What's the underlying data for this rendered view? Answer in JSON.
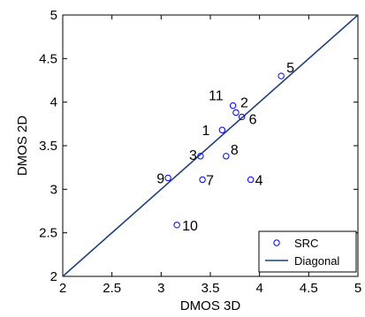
{
  "chart_data": {
    "type": "scatter",
    "title": "",
    "xlabel": "DMOS 3D",
    "ylabel": "DMOS 2D",
    "xlim": [
      2,
      5
    ],
    "ylim": [
      2,
      5
    ],
    "x_ticks": [
      "2",
      "2.5",
      "3",
      "3.5",
      "4",
      "4.5",
      "5"
    ],
    "y_ticks": [
      "2",
      "2.5",
      "3",
      "3.5",
      "4",
      "4.5",
      "5"
    ],
    "grid": false,
    "legend_position": "bottom-right",
    "series": [
      {
        "name": "SRC",
        "marker": "circle-open",
        "color": "#0000ff",
        "points": [
          {
            "label": "1",
            "x": 3.62,
            "y": 3.68
          },
          {
            "label": "2",
            "x": 3.76,
            "y": 3.88
          },
          {
            "label": "3",
            "x": 3.4,
            "y": 3.38
          },
          {
            "label": "4",
            "x": 3.91,
            "y": 3.11
          },
          {
            "label": "5",
            "x": 4.22,
            "y": 4.3
          },
          {
            "label": "6",
            "x": 3.82,
            "y": 3.83
          },
          {
            "label": "7",
            "x": 3.42,
            "y": 3.11
          },
          {
            "label": "8",
            "x": 3.66,
            "y": 3.38
          },
          {
            "label": "9",
            "x": 3.07,
            "y": 3.13
          },
          {
            "label": "10",
            "x": 3.16,
            "y": 2.59
          },
          {
            "label": "11",
            "x": 3.73,
            "y": 3.96
          }
        ]
      },
      {
        "name": "Diagonal",
        "type": "line",
        "color": "#1f3f7f",
        "x": [
          2,
          5
        ],
        "y": [
          2,
          5
        ]
      }
    ]
  }
}
